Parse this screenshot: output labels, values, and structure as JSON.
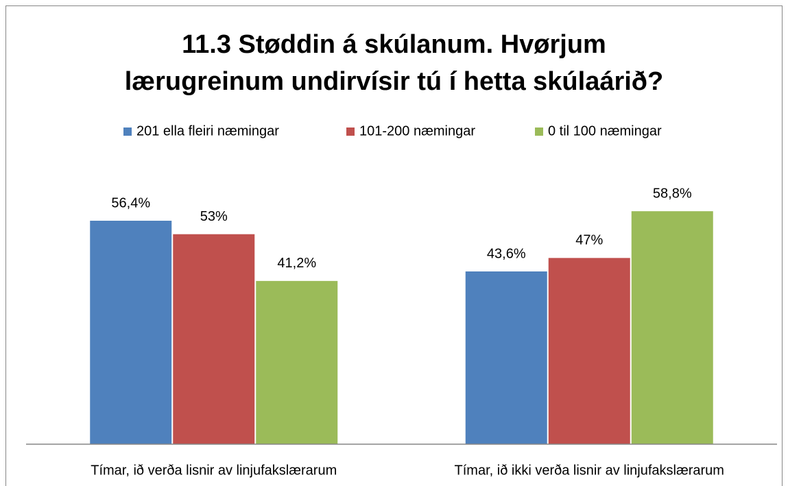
{
  "chart_data": {
    "type": "bar",
    "title": "11.3 Støddin á skúlanum. Hvørjum\nlærugreinum undirvísir tú í hetta skúlaárið?",
    "categories": [
      "Tímar, ið verða lisnir av linjufakslærarum",
      "Tímar, ið ikki verða lisnir av linjufakslærarum"
    ],
    "series": [
      {
        "name": "201 ella fleiri næmingar",
        "color": "#4f81bd",
        "values": [
          56.4,
          43.6
        ],
        "value_labels": [
          "56,4%",
          "43,6%"
        ]
      },
      {
        "name": "101-200 næmingar",
        "color": "#c0504d",
        "values": [
          53,
          47
        ],
        "value_labels": [
          "53%",
          "47%"
        ]
      },
      {
        "name": "0 til 100 næmingar",
        "color": "#9bbb59",
        "values": [
          41.2,
          58.8
        ],
        "value_labels": [
          "41,2%",
          "58,8%"
        ]
      }
    ],
    "legend": "top"
  }
}
